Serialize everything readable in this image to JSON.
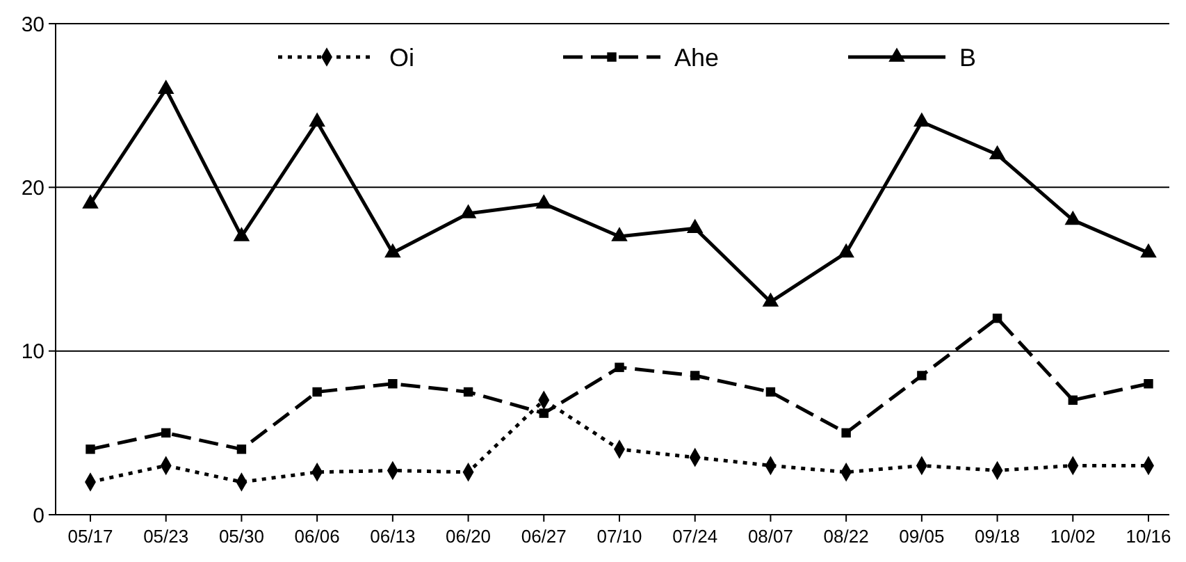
{
  "chart_data": {
    "type": "line",
    "categories": [
      "05/17",
      "05/23",
      "05/30",
      "06/06",
      "06/13",
      "06/20",
      "06/27",
      "07/10",
      "07/24",
      "08/07",
      "08/22",
      "09/05",
      "09/18",
      "10/02",
      "10/16"
    ],
    "series": [
      {
        "name": "Oi",
        "color": "#000000",
        "line_style": "dotted",
        "marker": "diamond",
        "values": [
          2,
          3,
          2,
          2.6,
          2.7,
          2.6,
          7,
          4,
          3.5,
          3,
          2.6,
          3,
          2.7,
          3,
          3
        ]
      },
      {
        "name": "Ahe",
        "color": "#000000",
        "line_style": "dashed",
        "marker": "square",
        "values": [
          4,
          5,
          4,
          7.5,
          8,
          7.5,
          6.2,
          9,
          8.5,
          7.5,
          5,
          8.5,
          12,
          7,
          8
        ]
      },
      {
        "name": "B",
        "color": "#000000",
        "line_style": "solid",
        "marker": "triangle",
        "values": [
          19,
          26,
          17,
          24,
          16,
          18.4,
          19,
          17,
          17.5,
          13,
          16,
          24,
          22,
          18,
          16
        ]
      }
    ],
    "ylim": [
      0,
      30
    ],
    "yticks": [
      0,
      10,
      20,
      30
    ],
    "grid": "y",
    "legend": "top"
  }
}
